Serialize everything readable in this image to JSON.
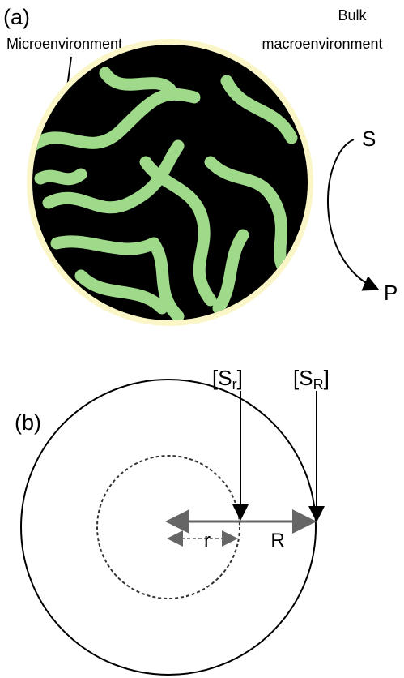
{
  "panel_a": {
    "label": "(a)",
    "microenvironment": "Microenvironment",
    "bulk": [
      "Bulk",
      "macroenvironment"
    ],
    "substrate": "S",
    "product": "P"
  },
  "panel_b": {
    "label": "(b)",
    "inner_concentration": {
      "open": "[S",
      "sub": "r",
      "close": "]"
    },
    "outer_concentration": {
      "open": "[S",
      "sub": "R",
      "close": "]"
    },
    "inner_radius": "r",
    "outer_radius": "R"
  }
}
